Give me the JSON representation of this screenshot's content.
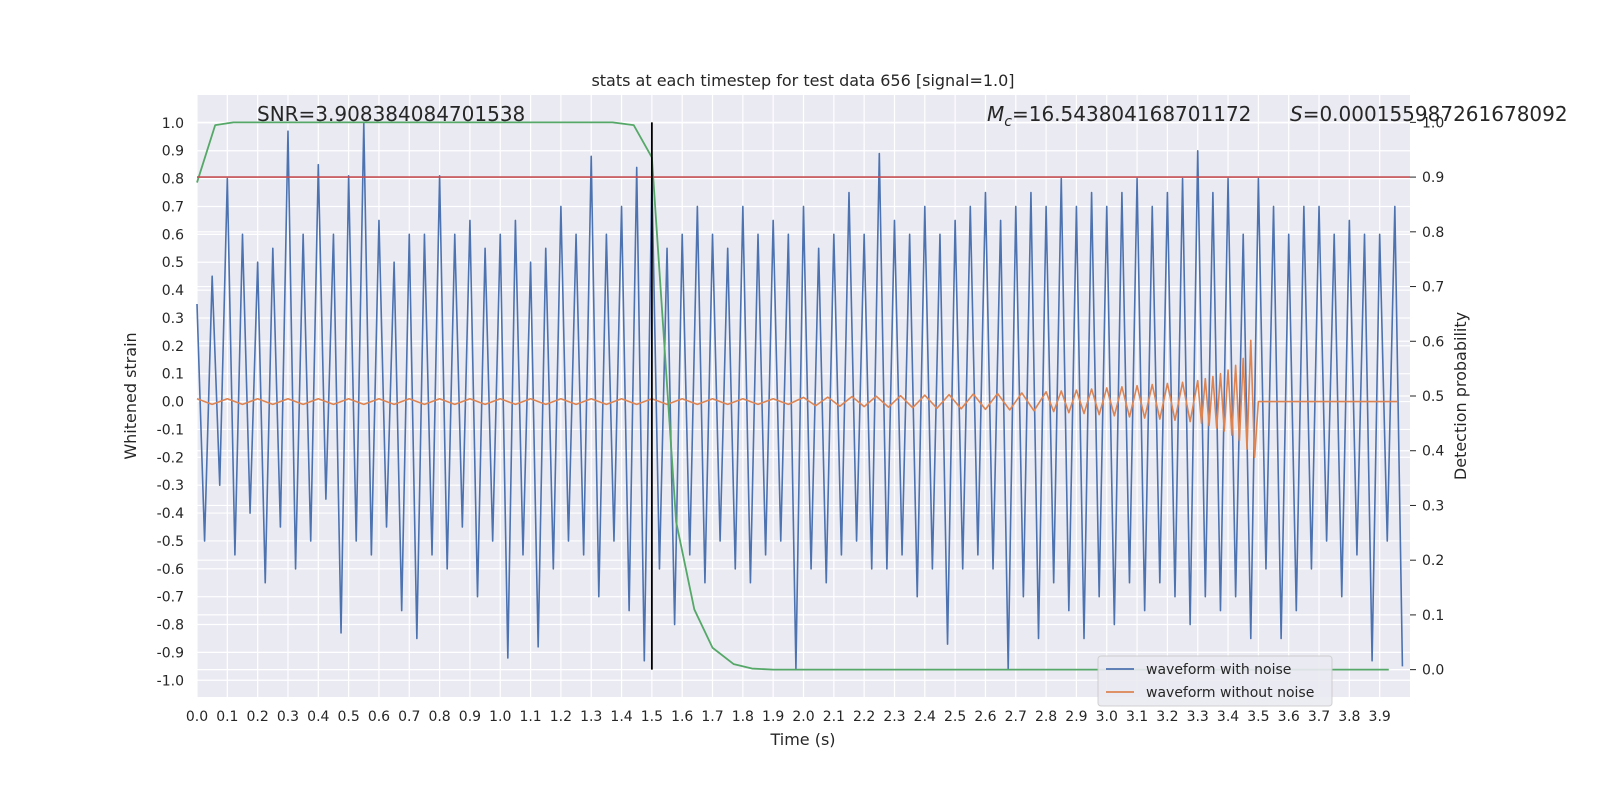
{
  "chart_data": {
    "type": "line",
    "title": "stats at each timestep for test data 656 [signal=1.0]",
    "xlabel": "Time (s)",
    "ylabel": "Whitened strain",
    "y2label": "Detection probability",
    "snr_text": "SNR=3.908384084701538",
    "mc_text": {
      "symbol": "M",
      "subscript": "c",
      "text": "=16.543804168701172"
    },
    "s_text": {
      "symbol": "S",
      "text": "=0.000155987261678092"
    },
    "xlim": [
      0,
      4
    ],
    "ylim": [
      -1.06,
      1.1
    ],
    "y2lim": [
      -0.05,
      1.05
    ],
    "xticks": [
      {
        "value": 0,
        "label": "0.0"
      },
      0.1,
      0.2,
      0.3,
      0.4,
      0.5,
      0.6,
      0.7,
      0.8,
      0.9,
      {
        "value": 1,
        "label": "1.0"
      },
      1.1,
      1.2,
      1.3,
      1.4,
      1.5,
      1.6,
      1.7,
      1.8,
      1.9,
      {
        "value": 2,
        "label": "2.0"
      },
      2.1,
      2.2,
      2.3,
      2.4,
      2.5,
      2.6,
      2.7,
      2.8,
      2.9,
      {
        "value": 3,
        "label": "3.0"
      },
      3.1,
      3.2,
      3.3,
      3.4,
      3.5,
      3.6,
      3.7,
      3.8,
      3.9
    ],
    "yticks": [
      {
        "value": 1,
        "label": "1.0"
      },
      0.9,
      0.8,
      0.7,
      0.6,
      0.5,
      0.4,
      0.3,
      0.2,
      0.1,
      {
        "value": 0,
        "label": "0.0"
      },
      -0.1,
      -0.2,
      -0.3,
      -0.4,
      -0.5,
      -0.6,
      -0.7,
      -0.8,
      -0.9,
      {
        "value": -1,
        "label": "-1.0"
      }
    ],
    "y2ticks": [
      {
        "value": 1,
        "label": "1.0"
      },
      0.9,
      0.8,
      0.7,
      0.6,
      0.5,
      0.4,
      0.3,
      0.2,
      0.1,
      {
        "value": 0,
        "label": "0.0"
      }
    ],
    "grid": true,
    "legend": "lower right",
    "series": [
      {
        "name": "waveform with noise",
        "color": "#4c72b0",
        "x": [
          0,
          0.025,
          0.05,
          0.075,
          0.1,
          0.125,
          0.15,
          0.175,
          0.2,
          0.225,
          0.25,
          0.275,
          0.3,
          0.325,
          0.35,
          0.375,
          0.4,
          0.425,
          0.45,
          0.475,
          0.5,
          0.525,
          0.55,
          0.575,
          0.6,
          0.625,
          0.65,
          0.675,
          0.7,
          0.725,
          0.75,
          0.775,
          0.8,
          0.825,
          0.85,
          0.875,
          0.9,
          0.925,
          0.95,
          0.975,
          1,
          1.025,
          1.05,
          1.075,
          1.1,
          1.125,
          1.15,
          1.175,
          1.2,
          1.225,
          1.25,
          1.275,
          1.3,
          1.325,
          1.35,
          1.375,
          1.4,
          1.425,
          1.45,
          1.475,
          1.5,
          1.525,
          1.55,
          1.575,
          1.6,
          1.625,
          1.65,
          1.675,
          1.7,
          1.725,
          1.75,
          1.775,
          1.8,
          1.825,
          1.85,
          1.875,
          1.9,
          1.925,
          1.95,
          1.975,
          2,
          2.025,
          2.05,
          2.075,
          2.1,
          2.125,
          2.15,
          2.175,
          2.2,
          2.225,
          2.25,
          2.275,
          2.3,
          2.325,
          2.35,
          2.375,
          2.4,
          2.425,
          2.45,
          2.475,
          2.5,
          2.525,
          2.55,
          2.575,
          2.6,
          2.625,
          2.65,
          2.675,
          2.7,
          2.725,
          2.75,
          2.775,
          2.8,
          2.825,
          2.85,
          2.875,
          2.9,
          2.925,
          2.95,
          2.975,
          3,
          3.025,
          3.05,
          3.075,
          3.1,
          3.125,
          3.15,
          3.175,
          3.2,
          3.225,
          3.25,
          3.275,
          3.3,
          3.325,
          3.35,
          3.375,
          3.4,
          3.425,
          3.45,
          3.475,
          3.5,
          3.525,
          3.55,
          3.575,
          3.6,
          3.625,
          3.65,
          3.675,
          3.7,
          3.725,
          3.75,
          3.775,
          3.8,
          3.825,
          3.85,
          3.875,
          3.9,
          3.925,
          3.95,
          3.975
        ],
        "values": [
          0.35,
          -0.5,
          0.45,
          -0.3,
          0.8,
          -0.55,
          0.6,
          -0.4,
          0.5,
          -0.65,
          0.55,
          -0.45,
          0.97,
          -0.6,
          0.6,
          -0.5,
          0.85,
          -0.35,
          0.6,
          -0.83,
          0.81,
          -0.5,
          1.0,
          -0.55,
          0.65,
          -0.45,
          0.5,
          -0.75,
          0.6,
          -0.85,
          0.6,
          -0.55,
          0.81,
          -0.6,
          0.6,
          -0.45,
          0.65,
          -0.7,
          0.55,
          -0.5,
          0.6,
          -0.92,
          0.65,
          -0.55,
          0.5,
          -0.88,
          0.55,
          -0.6,
          0.7,
          -0.5,
          0.6,
          -0.55,
          0.88,
          -0.7,
          0.6,
          -0.5,
          0.7,
          -0.75,
          0.84,
          -0.93,
          0.8,
          -0.6,
          0.55,
          -0.8,
          0.6,
          -0.55,
          0.7,
          -0.65,
          0.6,
          -0.5,
          0.55,
          -0.6,
          0.7,
          -0.65,
          0.6,
          -0.55,
          0.65,
          -0.5,
          0.6,
          -0.96,
          0.7,
          -0.6,
          0.55,
          -0.65,
          0.6,
          -0.55,
          0.75,
          -0.5,
          0.6,
          -0.6,
          0.89,
          -0.6,
          0.65,
          -0.55,
          0.6,
          -0.7,
          0.7,
          -0.6,
          0.6,
          -0.87,
          0.65,
          -0.6,
          0.7,
          -0.55,
          0.75,
          -0.6,
          0.65,
          -0.96,
          0.7,
          -0.7,
          0.75,
          -0.85,
          0.7,
          -0.65,
          0.8,
          -0.75,
          0.7,
          -0.85,
          0.75,
          -0.7,
          0.7,
          -0.8,
          0.75,
          -0.65,
          0.8,
          -0.75,
          0.7,
          -0.65,
          0.75,
          -0.7,
          0.8,
          -0.8,
          0.9,
          -0.7,
          0.75,
          -0.75,
          0.8,
          -0.7,
          0.6,
          -0.85,
          0.8,
          -0.6,
          0.7,
          -0.85,
          0.6,
          -0.75,
          0.7,
          -0.6,
          0.7,
          -0.5,
          0.6,
          -0.7,
          0.65,
          -0.55,
          0.6,
          -0.93,
          0.6,
          -0.5,
          0.7,
          -0.95
        ]
      },
      {
        "name": "waveform without noise",
        "color": "#dd8452",
        "x": [
          0,
          0.05,
          0.1,
          0.15,
          0.2,
          0.25,
          0.3,
          0.35,
          0.4,
          0.45,
          0.5,
          0.55,
          0.6,
          0.65,
          0.7,
          0.75,
          0.8,
          0.85,
          0.9,
          0.95,
          1,
          1.05,
          1.1,
          1.15,
          1.2,
          1.25,
          1.3,
          1.35,
          1.4,
          1.45,
          1.5,
          1.55,
          1.6,
          1.65,
          1.7,
          1.75,
          1.8,
          1.85,
          1.9,
          1.95,
          2,
          2.04,
          2.08,
          2.12,
          2.16,
          2.2,
          2.24,
          2.28,
          2.32,
          2.36,
          2.4,
          2.44,
          2.48,
          2.52,
          2.56,
          2.6,
          2.64,
          2.68,
          2.72,
          2.76,
          2.8,
          2.825,
          2.85,
          2.875,
          2.9,
          2.925,
          2.95,
          2.975,
          3,
          3.025,
          3.05,
          3.075,
          3.1,
          3.125,
          3.15,
          3.175,
          3.2,
          3.225,
          3.25,
          3.275,
          3.3,
          3.3125,
          3.325,
          3.3375,
          3.35,
          3.3625,
          3.375,
          3.3875,
          3.4,
          3.4125,
          3.425,
          3.4375,
          3.45,
          3.4625,
          3.475,
          3.4875,
          3.5,
          3.96
        ],
        "values": [
          0.01,
          -0.01,
          0.01,
          -0.01,
          0.01,
          -0.01,
          0.01,
          -0.01,
          0.01,
          -0.01,
          0.01,
          -0.01,
          0.01,
          -0.01,
          0.01,
          -0.01,
          0.01,
          -0.01,
          0.01,
          -0.01,
          0.01,
          -0.01,
          0.01,
          -0.01,
          0.01,
          -0.01,
          0.01,
          -0.01,
          0.01,
          -0.01,
          0.01,
          -0.01,
          0.01,
          -0.01,
          0.01,
          -0.01,
          0.01,
          -0.01,
          0.01,
          -0.01,
          0.015,
          -0.015,
          0.016,
          -0.017,
          0.018,
          -0.018,
          0.019,
          -0.02,
          0.021,
          -0.022,
          0.023,
          -0.024,
          0.025,
          -0.026,
          0.027,
          -0.028,
          0.029,
          -0.03,
          0.031,
          -0.033,
          0.035,
          -0.036,
          0.038,
          -0.04,
          0.041,
          -0.043,
          0.045,
          -0.047,
          0.049,
          -0.051,
          0.053,
          -0.055,
          0.057,
          -0.059,
          0.061,
          -0.063,
          0.065,
          -0.067,
          0.069,
          -0.072,
          0.075,
          -0.078,
          0.082,
          -0.086,
          0.09,
          -0.095,
          0.1,
          -0.106,
          0.113,
          -0.12,
          0.13,
          -0.14,
          0.155,
          -0.17,
          0.22,
          -0.2,
          0,
          0
        ]
      }
    ],
    "detection_probability": {
      "axis": "y2",
      "color": "#55a868",
      "x": [
        0,
        0.06,
        0.12,
        0.2,
        0.4,
        0.6,
        0.8,
        1.0,
        1.2,
        1.37,
        1.44,
        1.5,
        1.58,
        1.64,
        1.7,
        1.77,
        1.83,
        1.9,
        2.5,
        3.0,
        3.5,
        3.93
      ],
      "values": [
        0.89,
        0.995,
        1.0,
        1.0,
        1.0,
        1.0,
        1.0,
        1.0,
        1.0,
        1.0,
        0.995,
        0.936,
        0.27,
        0.11,
        0.04,
        0.01,
        0.002,
        0.0,
        0.0,
        0.0,
        0.0,
        0.0
      ]
    },
    "threshold": {
      "axis": "y2",
      "value": 0.9,
      "color": "#c44e52"
    },
    "marker_line": {
      "x": 1.5,
      "color": "#000000"
    }
  }
}
